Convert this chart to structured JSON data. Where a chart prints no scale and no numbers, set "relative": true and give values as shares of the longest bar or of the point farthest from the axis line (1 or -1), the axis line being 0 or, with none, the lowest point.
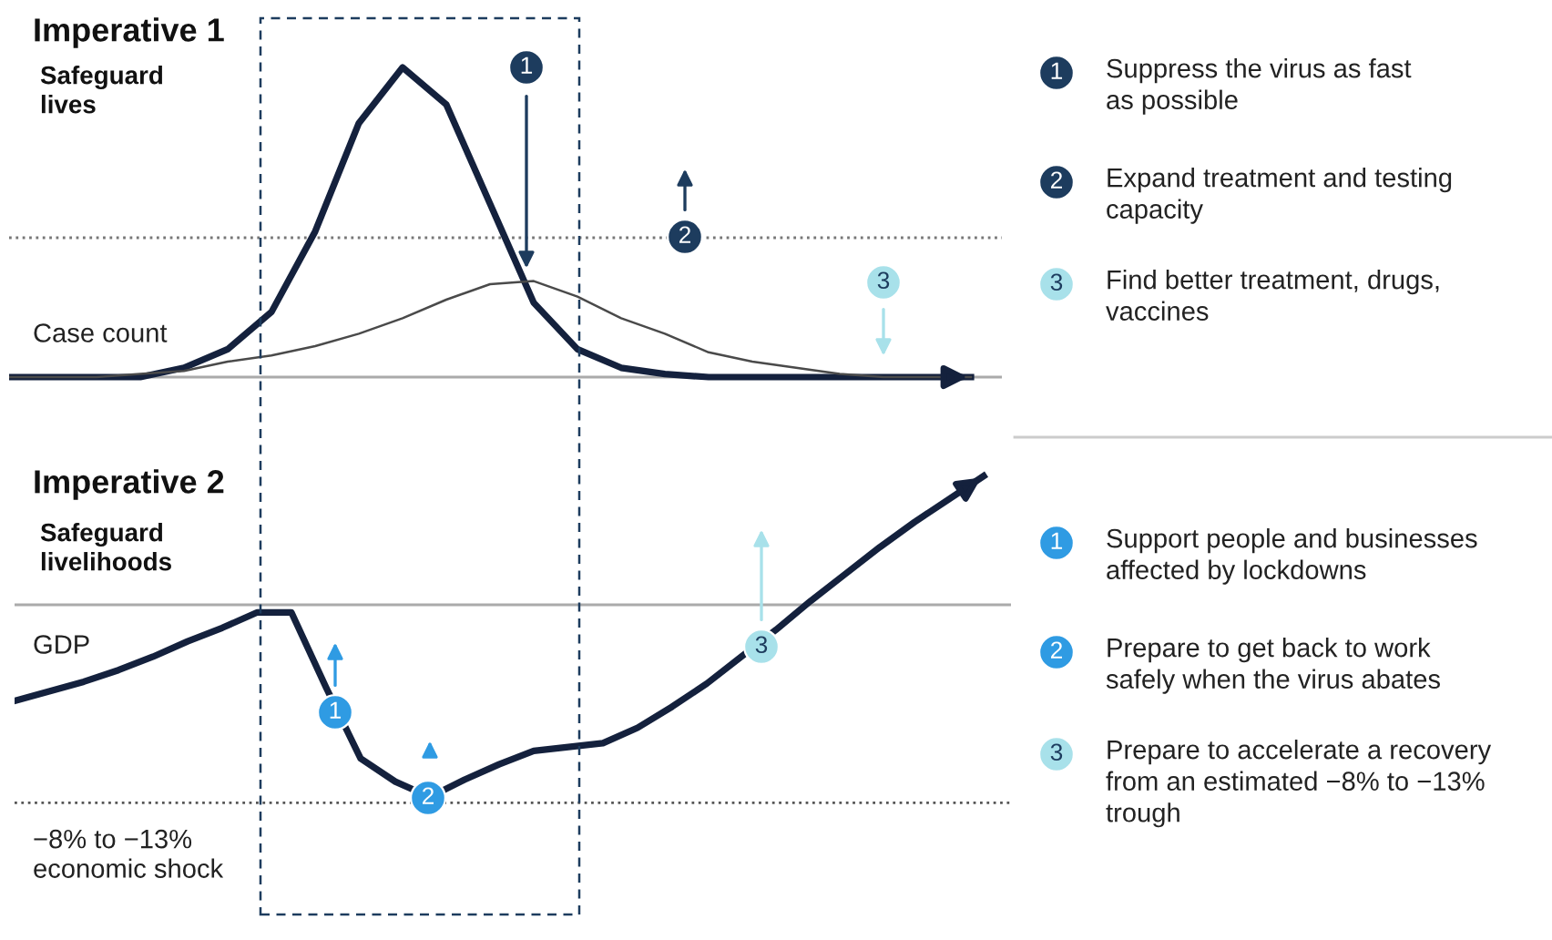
{
  "chart_data": [
    {
      "type": "line",
      "title": "Imperative 1",
      "subtitle": "Safeguard\nlives",
      "ylabel": "Case count",
      "relative": true,
      "categories": [
        null,
        null,
        null,
        null,
        null,
        null,
        null,
        null,
        null,
        null,
        null,
        null,
        null,
        null,
        null,
        null,
        null,
        null,
        null,
        null,
        null,
        null,
        null
      ],
      "series": [
        {
          "color": "#14213d",
          "values": [
            0,
            0,
            0,
            0,
            0.03,
            0.09,
            0.21,
            0.47,
            0.82,
            1,
            0.88,
            0.56,
            0.24,
            0.09,
            0.03,
            0.01,
            0,
            0,
            0,
            0,
            0,
            0,
            0
          ]
        },
        {
          "color": "#4a4a4a",
          "values": [
            0,
            0,
            0,
            0.01,
            0.02,
            0.05,
            0.07,
            0.1,
            0.14,
            0.19,
            0.25,
            0.3,
            0.31,
            0.26,
            0.19,
            0.14,
            0.08,
            0.05,
            0.03,
            0.01,
            0,
            0,
            0
          ]
        }
      ],
      "ref_lines": [
        {
          "axis": "y",
          "value": 0.45,
          "color": "#777777",
          "line_style": "dotted"
        }
      ],
      "annotations": [
        "1",
        "2",
        "3"
      ]
    },
    {
      "type": "line",
      "title": "Imperative 2",
      "subtitle": "Safeguard\nlivelihoods",
      "ylabel": "GDP",
      "relative": true,
      "categories": [
        null,
        null,
        null,
        null,
        null,
        null,
        null,
        null,
        null,
        null,
        null,
        null,
        null,
        null,
        null,
        null,
        null,
        null,
        null,
        null,
        null,
        null,
        null,
        null,
        null,
        null,
        null,
        null,
        null
      ],
      "series": [
        {
          "color": "#14213d",
          "values": [
            -0.5,
            -0.45,
            -0.4,
            -0.34,
            -0.27,
            -0.19,
            -0.12,
            -0.04,
            -0.04,
            -0.43,
            -0.8,
            -0.92,
            -1,
            -0.91,
            -0.83,
            -0.76,
            -0.74,
            -0.72,
            -0.64,
            -0.53,
            -0.41,
            -0.27,
            -0.13,
            0.02,
            0.16,
            0.3,
            0.43,
            0.55,
            0.67
          ]
        }
      ],
      "ref_lines": [
        {
          "axis": "y",
          "value": -1.03,
          "color": "#555555",
          "line_style": "dotted"
        }
      ],
      "annotations": [
        "1",
        "2",
        "3",
        "−8% to −13%\neconomic shock"
      ]
    },
    {
      "type": "other",
      "annotations": [
        "1",
        "Suppress the virus as fast\nas possible",
        "2",
        "Expand treatment and testing\ncapacity",
        "3",
        "Find better treatment, drugs,\nvaccines",
        "1",
        "Support people and businesses\naffected by lockdowns",
        "2",
        "Prepare to get back to work\nsafely when the virus abates",
        "3",
        "Prepare to accelerate a recovery\nfrom an estimated −8% to −13%\ntrough"
      ]
    }
  ]
}
